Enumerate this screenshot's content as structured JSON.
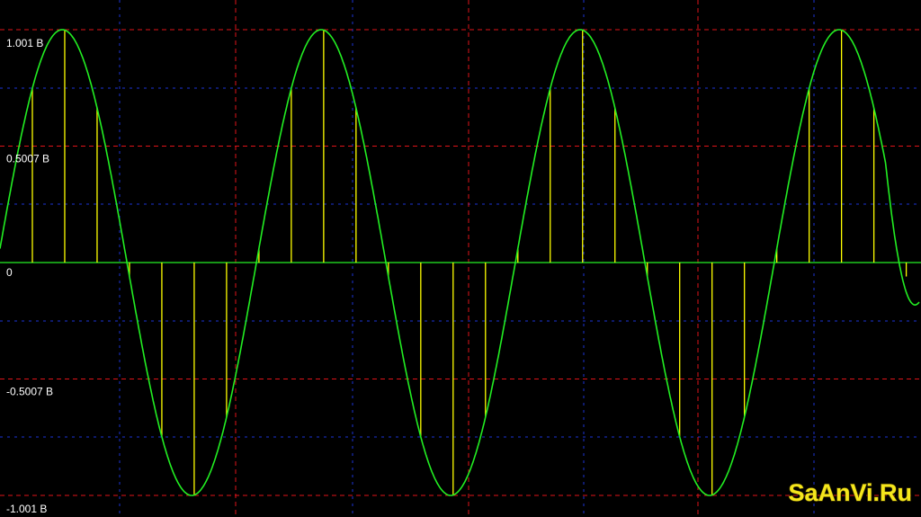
{
  "chart_data": {
    "type": "line",
    "title": "",
    "xlabel": "",
    "ylabel": "",
    "ylim": [
      -1.001,
      1.001
    ],
    "y_tick_labels": [
      "1.001 В",
      "0.5007 В",
      "0",
      "-0.5007 В",
      "-1.001 В"
    ],
    "y_tick_values": [
      1.001,
      0.5007,
      0,
      -0.5007,
      -1.001
    ],
    "grid": true,
    "background_color": "#000000",
    "major_grid_color": "#e0141a",
    "minor_grid_color": "#1c33d6",
    "baseline_color": "#1fc81f",
    "series": [
      {
        "kind": "continuous-signal",
        "color": "#22ee22",
        "amplitude": 1.001,
        "cycles_shown": 3.55,
        "x": [
          0.0,
          0.05,
          0.1,
          0.15,
          0.2,
          0.25,
          0.3,
          0.35,
          0.4,
          0.45,
          0.5,
          0.55,
          0.6,
          0.65,
          0.7,
          0.75,
          0.8,
          0.85,
          0.9,
          0.95,
          1.0,
          1.05,
          1.1,
          1.15,
          1.2,
          1.25,
          1.3,
          1.35,
          1.4,
          1.45,
          1.5,
          1.55,
          1.6,
          1.65,
          1.7,
          1.75,
          1.8,
          1.85,
          1.9,
          1.95,
          2.0,
          2.05,
          2.1,
          2.15,
          2.2,
          2.25,
          2.3,
          2.35,
          2.4,
          2.45,
          2.5,
          2.55,
          2.6,
          2.65,
          2.7,
          2.75,
          2.8,
          2.85,
          2.9,
          2.95,
          3.0,
          3.05,
          3.1,
          3.15,
          3.2,
          3.25,
          3.3,
          3.35,
          3.4,
          3.45,
          3.5,
          3.55
        ],
        "y": [
          0.06,
          0.36,
          0.63,
          0.84,
          0.97,
          1.0,
          0.94,
          0.79,
          0.56,
          0.28,
          -0.02,
          -0.31,
          -0.59,
          -0.81,
          -0.95,
          -1.0,
          -0.96,
          -0.83,
          -0.62,
          -0.35,
          -0.05,
          0.25,
          0.53,
          0.77,
          0.93,
          1.0,
          0.98,
          0.86,
          0.67,
          0.41,
          0.11,
          -0.19,
          -0.48,
          -0.73,
          -0.91,
          -1.0,
          -0.99,
          -0.89,
          -0.71,
          -0.46,
          -0.17,
          0.13,
          0.43,
          0.69,
          0.89,
          0.99,
          1.0,
          0.92,
          0.75,
          0.51,
          0.23,
          -0.08,
          -0.38,
          -0.65,
          -0.86,
          -0.98,
          -1.0,
          -0.93,
          -0.77,
          -0.54,
          -0.26,
          0.04,
          0.33,
          0.6,
          0.82,
          0.96,
          1.0,
          0.95,
          0.8,
          0.59,
          0.3,
          -0.17
        ]
      },
      {
        "kind": "sample-stems",
        "color": "#ffff00",
        "sample_period_fraction_of_cycle": 0.125,
        "x": [
          0.125,
          0.25,
          0.375,
          0.5,
          0.625,
          0.75,
          0.875,
          1.0,
          1.125,
          1.25,
          1.375,
          1.5,
          1.625,
          1.75,
          1.875,
          2.0,
          2.125,
          2.25,
          2.375,
          2.5,
          2.625,
          2.75,
          2.875,
          3.0,
          3.125,
          3.25,
          3.375,
          3.5
        ],
        "y": [
          0.67,
          0.97,
          0.88,
          0.4,
          -0.31,
          -0.85,
          -0.95,
          -0.61,
          0.09,
          0.71,
          0.99,
          0.82,
          0.24,
          -0.43,
          -0.91,
          -1.0,
          -0.57,
          0.14,
          0.77,
          1.0,
          0.83,
          0.27,
          -0.41,
          -0.9,
          -0.97,
          -0.58,
          0.12,
          0.76
        ]
      }
    ]
  },
  "watermark": {
    "text": "SaAnVi.Ru",
    "color": "#f5e61c"
  }
}
